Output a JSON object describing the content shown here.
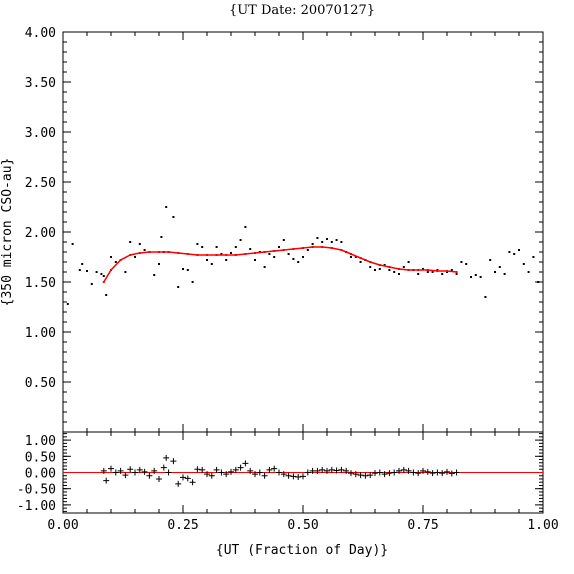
{
  "chart_data": [
    {
      "type": "scatter",
      "title": "{UT Date: 20070127}",
      "xlabel": "",
      "ylabel": "{350 micron CSO-au}",
      "xlim": [
        0.0,
        1.0
      ],
      "ylim": [
        0.0,
        4.0
      ],
      "x_ticks": [
        "0.00",
        "0.25",
        "0.50",
        "0.75",
        "1.00"
      ],
      "y_ticks": [
        "1.00",
        "1.50",
        "2.00",
        "2.50",
        "3.00",
        "3.50",
        "4.00",
        "0.50"
      ],
      "colors": {
        "points": "#000000",
        "fit": "#ff0000"
      },
      "series": [
        {
          "kind": "points",
          "x": [
            0.01,
            0.02,
            0.035,
            0.04,
            0.05,
            0.06,
            0.07,
            0.08,
            0.085,
            0.09,
            0.1,
            0.11,
            0.12,
            0.13,
            0.14,
            0.15,
            0.16,
            0.17,
            0.18,
            0.19,
            0.2,
            0.205,
            0.21,
            0.215,
            0.22,
            0.23,
            0.24,
            0.25,
            0.26,
            0.27,
            0.28,
            0.29,
            0.3,
            0.31,
            0.32,
            0.33,
            0.34,
            0.35,
            0.36,
            0.37,
            0.38,
            0.39,
            0.4,
            0.41,
            0.42,
            0.43,
            0.44,
            0.45,
            0.46,
            0.47,
            0.48,
            0.49,
            0.5,
            0.51,
            0.52,
            0.53,
            0.54,
            0.55,
            0.56,
            0.57,
            0.58,
            0.59,
            0.6,
            0.61,
            0.62,
            0.63,
            0.64,
            0.65,
            0.66,
            0.67,
            0.68,
            0.69,
            0.7,
            0.71,
            0.72,
            0.73,
            0.74,
            0.75,
            0.76,
            0.77,
            0.78,
            0.79,
            0.8,
            0.81,
            0.82,
            0.83,
            0.84,
            0.85,
            0.86,
            0.87,
            0.88,
            0.89,
            0.9,
            0.91,
            0.92,
            0.93,
            0.94,
            0.95,
            0.96,
            0.97,
            0.98,
            0.99
          ],
          "y": [
            1.28,
            1.88,
            1.62,
            1.68,
            1.61,
            1.48,
            1.6,
            1.58,
            1.56,
            1.37,
            1.75,
            1.7,
            1.72,
            1.6,
            1.9,
            1.75,
            1.88,
            1.82,
            1.8,
            1.57,
            1.68,
            1.95,
            1.8,
            2.25,
            1.8,
            2.15,
            1.45,
            1.63,
            1.62,
            1.5,
            1.88,
            1.85,
            1.72,
            1.68,
            1.85,
            1.78,
            1.72,
            1.79,
            1.85,
            1.92,
            2.05,
            1.83,
            1.72,
            1.8,
            1.65,
            1.78,
            1.75,
            1.85,
            1.92,
            1.78,
            1.73,
            1.7,
            1.75,
            1.82,
            1.88,
            1.94,
            1.9,
            1.93,
            1.9,
            1.92,
            1.9,
            1.8,
            1.75,
            1.75,
            1.7,
            1.72,
            1.65,
            1.62,
            1.63,
            1.67,
            1.62,
            1.6,
            1.58,
            1.65,
            1.7,
            1.62,
            1.58,
            1.63,
            1.6,
            1.6,
            1.62,
            1.58,
            1.6,
            1.62,
            1.58,
            1.7,
            1.68,
            1.55,
            1.57,
            1.55,
            1.35,
            1.72,
            1.6,
            1.65,
            1.58,
            1.8,
            1.78,
            1.82,
            1.68,
            1.6,
            1.75,
            1.5
          ]
        },
        {
          "kind": "fit",
          "x": [
            0.085,
            0.1,
            0.12,
            0.14,
            0.16,
            0.18,
            0.2,
            0.22,
            0.24,
            0.26,
            0.28,
            0.3,
            0.32,
            0.34,
            0.36,
            0.38,
            0.4,
            0.42,
            0.44,
            0.46,
            0.48,
            0.5,
            0.52,
            0.54,
            0.56,
            0.58,
            0.6,
            0.62,
            0.64,
            0.66,
            0.68,
            0.7,
            0.72,
            0.74,
            0.76,
            0.78,
            0.8,
            0.82
          ],
          "y": [
            1.5,
            1.62,
            1.72,
            1.77,
            1.79,
            1.8,
            1.8,
            1.8,
            1.79,
            1.78,
            1.77,
            1.77,
            1.77,
            1.77,
            1.77,
            1.78,
            1.79,
            1.8,
            1.81,
            1.82,
            1.83,
            1.84,
            1.85,
            1.85,
            1.84,
            1.82,
            1.78,
            1.74,
            1.7,
            1.67,
            1.65,
            1.63,
            1.62,
            1.62,
            1.62,
            1.61,
            1.61,
            1.6
          ]
        }
      ]
    },
    {
      "type": "scatter",
      "title": "",
      "xlabel": "{UT (Fraction of Day)}",
      "ylabel": "",
      "xlim": [
        0.0,
        1.0
      ],
      "ylim": [
        -1.25,
        1.25
      ],
      "x_ticks": [
        "0.00",
        "0.25",
        "0.50",
        "0.75",
        "1.00"
      ],
      "y_ticks": [
        "1.00",
        "0.50",
        "0.00",
        "-0.50",
        "-1.00"
      ],
      "colors": {
        "points": "#000000",
        "zero_line": "#ff0000"
      },
      "series": [
        {
          "kind": "residuals",
          "x": [
            0.085,
            0.09,
            0.1,
            0.11,
            0.12,
            0.13,
            0.14,
            0.15,
            0.16,
            0.17,
            0.18,
            0.19,
            0.2,
            0.21,
            0.215,
            0.22,
            0.23,
            0.24,
            0.25,
            0.26,
            0.27,
            0.28,
            0.29,
            0.3,
            0.31,
            0.32,
            0.33,
            0.34,
            0.35,
            0.36,
            0.37,
            0.38,
            0.39,
            0.4,
            0.41,
            0.42,
            0.43,
            0.44,
            0.45,
            0.46,
            0.47,
            0.48,
            0.49,
            0.5,
            0.51,
            0.52,
            0.53,
            0.54,
            0.55,
            0.56,
            0.57,
            0.58,
            0.59,
            0.6,
            0.61,
            0.62,
            0.63,
            0.64,
            0.65,
            0.66,
            0.67,
            0.68,
            0.69,
            0.7,
            0.71,
            0.72,
            0.73,
            0.74,
            0.75,
            0.76,
            0.77,
            0.78,
            0.79,
            0.8,
            0.81,
            0.82
          ],
          "y": [
            0.05,
            -0.25,
            0.12,
            0.0,
            0.05,
            -0.08,
            0.1,
            0.0,
            0.08,
            0.02,
            -0.1,
            0.05,
            -0.2,
            0.15,
            0.45,
            0.0,
            0.35,
            -0.35,
            -0.15,
            -0.18,
            -0.3,
            0.1,
            0.08,
            -0.05,
            -0.1,
            0.08,
            0.0,
            -0.05,
            0.02,
            0.08,
            0.15,
            0.28,
            0.05,
            -0.05,
            0.0,
            -0.1,
            0.08,
            0.12,
            0.0,
            -0.05,
            -0.1,
            -0.12,
            -0.14,
            -0.12,
            0.0,
            0.05,
            0.05,
            0.08,
            0.05,
            0.08,
            0.06,
            0.08,
            0.05,
            -0.02,
            -0.05,
            -0.08,
            -0.1,
            -0.08,
            -0.02,
            0.0,
            -0.05,
            -0.02,
            0.0,
            0.05,
            0.08,
            0.05,
            0.0,
            -0.02,
            0.05,
            0.02,
            -0.02,
            0.0,
            -0.02,
            0.02,
            -0.03,
            0.0
          ]
        }
      ]
    }
  ]
}
